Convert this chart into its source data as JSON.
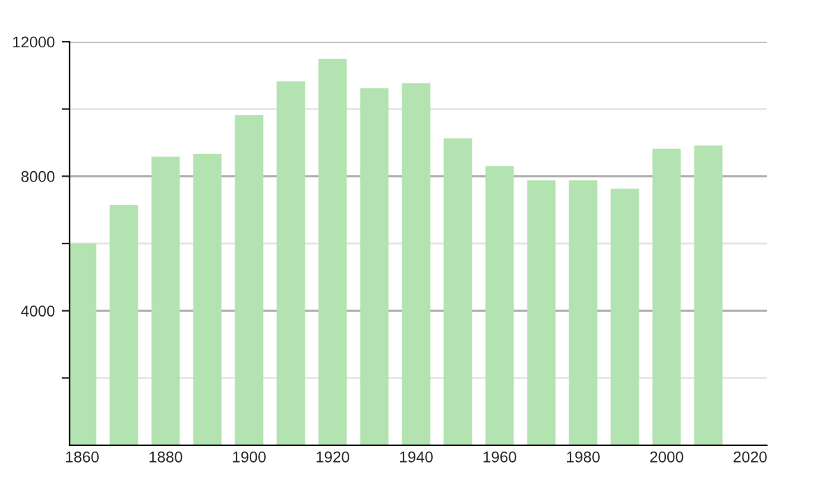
{
  "chart_data": {
    "type": "bar",
    "x": [
      1860,
      1870,
      1880,
      1890,
      1900,
      1910,
      1920,
      1930,
      1940,
      1950,
      1960,
      1970,
      1980,
      1990,
      2000,
      2010
    ],
    "values": [
      6000,
      7140,
      8580,
      8670,
      9820,
      10820,
      11490,
      10620,
      10770,
      9130,
      8300,
      7880,
      7880,
      7630,
      8820,
      8910
    ],
    "color": "#b3e3b0",
    "xlim": [
      1857,
      2024
    ],
    "xticks": [
      1860,
      1880,
      1900,
      1920,
      1940,
      1960,
      1980,
      2000,
      2020
    ],
    "ylim": [
      0,
      12000
    ],
    "yticks": [
      {
        "value": 2000,
        "label": null
      },
      4000,
      {
        "value": 6000,
        "label": null
      },
      8000,
      {
        "value": 10000,
        "label": null
      },
      12000
    ],
    "grid": "y"
  }
}
